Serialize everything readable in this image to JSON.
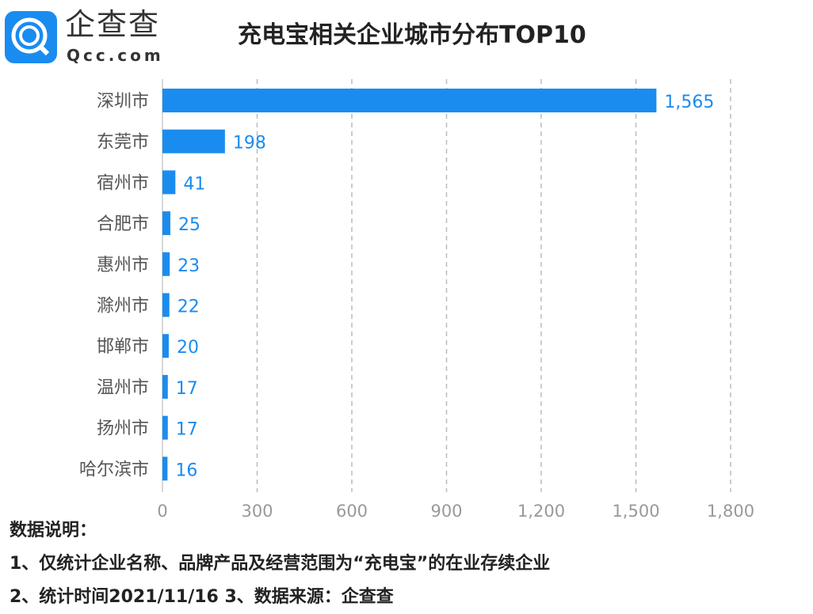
{
  "logo": {
    "text_cn": "企查查",
    "text_en": "Qcc.com"
  },
  "title": "充电宝相关企业城市分布TOP10",
  "chart_data": {
    "type": "bar",
    "orientation": "horizontal",
    "title": "充电宝相关企业城市分布TOP10",
    "categories": [
      "深圳市",
      "东莞市",
      "宿州市",
      "合肥市",
      "惠州市",
      "滁州市",
      "邯郸市",
      "温州市",
      "扬州市",
      "哈尔滨市"
    ],
    "values": [
      1565,
      198,
      41,
      25,
      23,
      22,
      20,
      17,
      17,
      16
    ],
    "value_labels": [
      "1,565",
      "198",
      "41",
      "25",
      "23",
      "22",
      "20",
      "17",
      "17",
      "16"
    ],
    "xlim": [
      0,
      1800
    ],
    "xticks": [
      "0",
      "300",
      "600",
      "900",
      "1,200",
      "1,500",
      "1,800"
    ],
    "grid": "vertical dashed",
    "bar_color": "#1a8cf0",
    "label_color": "#1a8cf0"
  },
  "notes": {
    "heading": "数据说明：",
    "line1": "1、仅统计企业名称、品牌产品及经营范围为“充电宝”的在业存续企业",
    "line2": "2、统计时间2021/11/16   3、数据来源：企查查"
  }
}
